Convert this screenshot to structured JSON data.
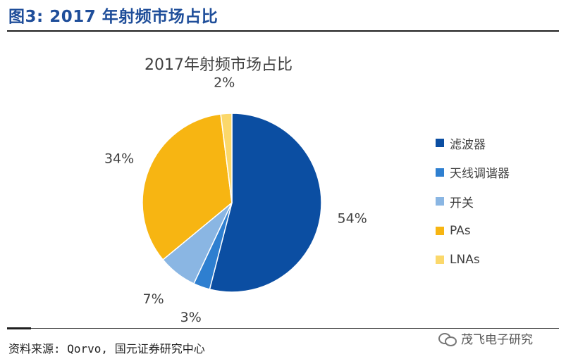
{
  "figure_title": "图3: 2017 年射频市场占比",
  "chart_data": {
    "type": "pie",
    "title": "2017年射频市场占比",
    "categories": [
      "滤波器",
      "天线调谐器",
      "开关",
      "PAs",
      "LNAs"
    ],
    "values": [
      54,
      3,
      7,
      34,
      2
    ],
    "value_labels": [
      "54%",
      "3%",
      "7%",
      "34%",
      "2%"
    ],
    "colors": [
      "#0b4ea2",
      "#2e7fd0",
      "#8ab6e3",
      "#f7b512",
      "#fbd86b"
    ],
    "legend_position": "right"
  },
  "source": "资料来源: Qorvo,  国元证券研究中心",
  "watermark": "茂飞电子研究"
}
